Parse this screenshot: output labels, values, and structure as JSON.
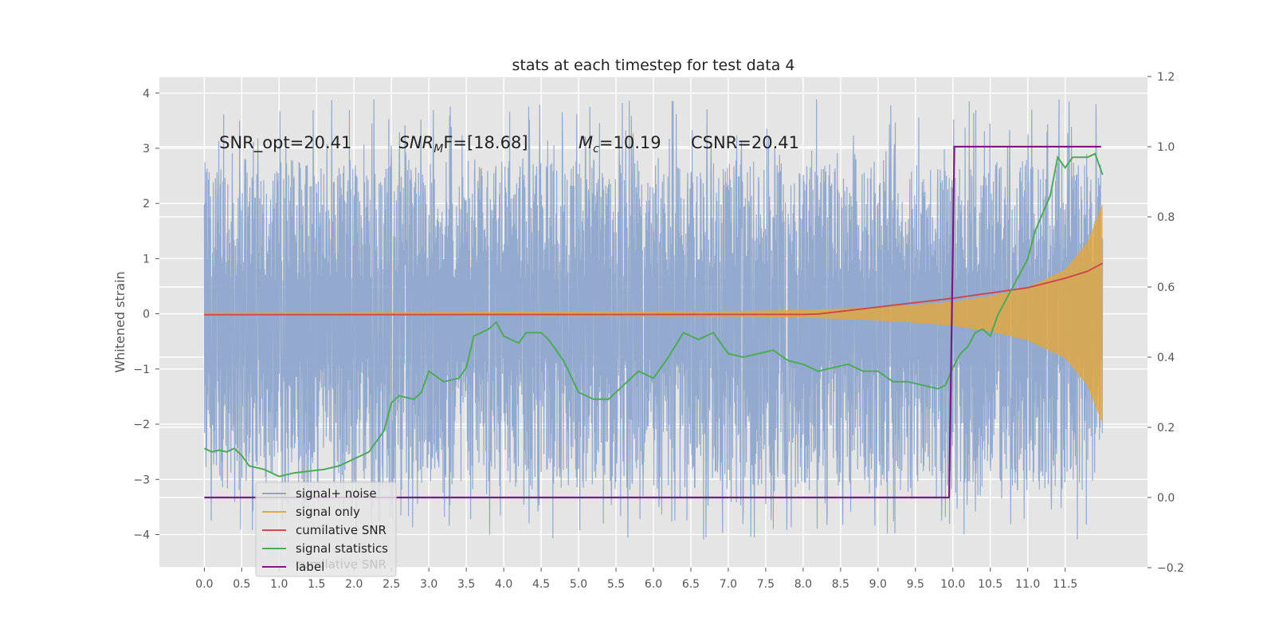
{
  "chart_data": {
    "type": "line",
    "title": "stats at each timestep for test data 4",
    "ylabel": "Whitened strain",
    "xlabel": "",
    "xlim": [
      -0.6,
      12.6
    ],
    "ylim": [
      -4.6,
      4.3
    ],
    "y2lim": [
      -0.2,
      1.2
    ],
    "grid": true,
    "xticks": [
      0.0,
      0.5,
      1.0,
      1.5,
      2.0,
      2.5,
      3.0,
      3.5,
      4.0,
      4.5,
      5.0,
      5.5,
      6.0,
      6.5,
      7.0,
      7.5,
      8.0,
      8.5,
      9.0,
      9.5,
      10.0,
      10.5,
      11.0,
      11.5
    ],
    "xtick_labels": [
      "0.0",
      "0.5",
      "1.0",
      "1.5",
      "2.0",
      "2.5",
      "3.0",
      "3.5",
      "4.0",
      "4.5",
      "5.0",
      "5.5",
      "6.0",
      "6.5",
      "7.0",
      "7.5",
      "8.0",
      "8.5",
      "9.0",
      "9.5",
      "10.0",
      "10.5",
      "11.0",
      "11.5"
    ],
    "yticks": [
      -4,
      -3,
      -2,
      -1,
      0,
      1,
      2,
      3,
      4
    ],
    "ytick_labels": [
      "−4",
      "−3",
      "−2",
      "−1",
      "0",
      "1",
      "2",
      "3",
      "4"
    ],
    "y2ticks": [
      -0.2,
      0.0,
      0.2,
      0.4,
      0.6,
      0.8,
      1.0,
      1.2
    ],
    "y2tick_labels": [
      "−0.2",
      "0.0",
      "0.2",
      "0.4",
      "0.6",
      "0.8",
      "1.0",
      "1.2"
    ],
    "annotations": [
      {
        "text": "SNR_opt=20.41",
        "x": 0.2,
        "y": 3.1
      },
      {
        "text_main": "SNR",
        "text_sub": "M",
        "text_rest": "F=[18.68]",
        "x": 2.6,
        "y": 3.1
      },
      {
        "text_main": "M",
        "text_sub": "c",
        "text_rest": "=10.19",
        "x": 5.0,
        "y": 3.1
      },
      {
        "text": "CSNR=20.41",
        "x": 6.5,
        "y": 3.1
      }
    ],
    "series": [
      {
        "name": "signal+ noise",
        "axis": "left",
        "color": "#8ea5cc",
        "kind": "noise",
        "range": [
          0.0,
          12.0
        ],
        "typical_spread": [
          -2.2,
          1.8
        ],
        "extremes": [
          -4.1,
          3.9
        ]
      },
      {
        "name": "signal only",
        "axis": "left",
        "color": "#e3a740",
        "kind": "chirp",
        "envelope": {
          "x": [
            0.0,
            7.0,
            8.0,
            9.0,
            9.5,
            10.0,
            10.5,
            11.0,
            11.5,
            11.8,
            12.0
          ],
          "y": [
            0.02,
            0.05,
            0.07,
            0.12,
            0.16,
            0.22,
            0.32,
            0.48,
            0.8,
            1.3,
            2.0
          ]
        }
      },
      {
        "name": "cumilative SNR",
        "axis": "right",
        "color": "#cc4c4c",
        "x": [
          0.0,
          8.0,
          8.2,
          9.0,
          10.0,
          10.5,
          11.0,
          11.5,
          11.8,
          12.0
        ],
        "y": [
          0.521,
          0.522,
          0.523,
          0.543,
          0.568,
          0.583,
          0.598,
          0.625,
          0.645,
          0.668
        ]
      },
      {
        "name": "signal statistics",
        "axis": "right",
        "color": "#4daa59",
        "x": [
          0.0,
          0.1,
          0.2,
          0.3,
          0.4,
          0.5,
          0.6,
          0.8,
          1.0,
          1.2,
          1.6,
          1.8,
          2.0,
          2.2,
          2.4,
          2.5,
          2.6,
          2.8,
          2.9,
          3.0,
          3.2,
          3.4,
          3.5,
          3.6,
          3.8,
          3.9,
          4.0,
          4.2,
          4.3,
          4.5,
          4.6,
          4.8,
          5.0,
          5.2,
          5.4,
          5.6,
          5.8,
          6.0,
          6.2,
          6.4,
          6.6,
          6.8,
          7.0,
          7.2,
          7.4,
          7.6,
          7.8,
          8.0,
          8.2,
          8.4,
          8.6,
          8.8,
          9.0,
          9.2,
          9.4,
          9.6,
          9.8,
          9.9,
          10.0,
          10.1,
          10.2,
          10.3,
          10.4,
          10.5,
          10.6,
          10.8,
          11.0,
          11.1,
          11.3,
          11.4,
          11.5,
          11.6,
          11.8,
          11.9,
          12.0
        ],
        "y": [
          0.14,
          0.13,
          0.135,
          0.13,
          0.14,
          0.12,
          0.09,
          0.08,
          0.06,
          0.07,
          0.08,
          0.09,
          0.11,
          0.13,
          0.19,
          0.27,
          0.29,
          0.28,
          0.3,
          0.36,
          0.33,
          0.34,
          0.37,
          0.46,
          0.48,
          0.5,
          0.46,
          0.44,
          0.47,
          0.47,
          0.45,
          0.39,
          0.3,
          0.28,
          0.28,
          0.32,
          0.36,
          0.34,
          0.4,
          0.47,
          0.45,
          0.47,
          0.41,
          0.4,
          0.41,
          0.42,
          0.39,
          0.38,
          0.36,
          0.37,
          0.38,
          0.36,
          0.36,
          0.33,
          0.33,
          0.32,
          0.31,
          0.32,
          0.37,
          0.41,
          0.43,
          0.47,
          0.48,
          0.46,
          0.52,
          0.6,
          0.68,
          0.76,
          0.86,
          0.97,
          0.94,
          0.97,
          0.97,
          0.98,
          0.92
        ]
      },
      {
        "name": "label",
        "axis": "right",
        "color": "#7a1a82",
        "x": [
          0.0,
          9.95,
          10.02,
          11.98
        ],
        "y": [
          0.0,
          0.0,
          1.0,
          1.0
        ]
      }
    ],
    "legend": {
      "placement": "lower-left",
      "entries": [
        "signal+ noise",
        "signal only",
        "cumilative SNR",
        "signal statistics",
        "label"
      ],
      "ghost_text": "cumilative SNR"
    }
  }
}
